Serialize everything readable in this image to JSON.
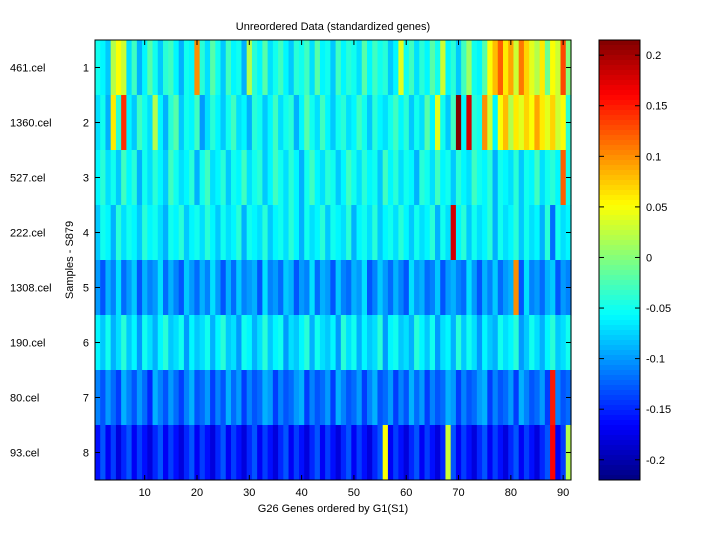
{
  "chart_data": {
    "type": "heatmap",
    "title": "Unreordered Data (standardized genes)",
    "xlabel": "G26 Genes ordered by G1(S1)",
    "ylabel": "Samples - S879",
    "x_ticks": [
      "10",
      "20",
      "30",
      "40",
      "50",
      "60",
      "70",
      "80",
      "90"
    ],
    "x_tick_values": [
      10,
      20,
      30,
      40,
      50,
      60,
      70,
      80,
      90
    ],
    "y_ticks": [
      "1",
      "2",
      "3",
      "4",
      "5",
      "6",
      "7",
      "8"
    ],
    "row_labels": [
      "461.cel",
      "1360.cel",
      "527.cel",
      "222.cel",
      "1308.cel",
      "190.cel",
      "80.cel",
      "93.cel"
    ],
    "n_genes": 91,
    "colormap": "jet",
    "clim": [
      -0.22,
      0.215
    ],
    "colorbar_ticks": [
      "0.2",
      "0.15",
      "0.1",
      "0.05",
      "0",
      "-0.05",
      "-0.1",
      "-0.15",
      "-0.2"
    ],
    "colorbar_tick_values": [
      0.2,
      0.15,
      0.1,
      0.05,
      0,
      -0.05,
      -0.1,
      -0.15,
      -0.2
    ],
    "values": [
      [
        -0.05,
        -0.06,
        -0.08,
        0.02,
        0.05,
        0.03,
        -0.07,
        -0.03,
        -0.09,
        -0.06,
        -0.02,
        -0.05,
        -0.08,
        -0.04,
        -0.03,
        -0.06,
        -0.09,
        -0.05,
        -0.06,
        0.1,
        -0.04,
        -0.07,
        -0.02,
        -0.05,
        -0.08,
        -0.03,
        -0.06,
        -0.05,
        -0.09,
        0.02,
        -0.04,
        -0.06,
        -0.02,
        -0.07,
        -0.05,
        -0.03,
        -0.06,
        -0.08,
        -0.04,
        -0.05,
        -0.03,
        -0.07,
        -0.02,
        -0.06,
        -0.05,
        -0.08,
        -0.03,
        -0.06,
        -0.04,
        -0.05,
        -0.07,
        -0.02,
        -0.06,
        -0.03,
        -0.05,
        -0.04,
        -0.08,
        -0.06,
        0.04,
        -0.05,
        -0.03,
        -0.07,
        -0.04,
        -0.06,
        -0.02,
        -0.05,
        0.03,
        -0.06,
        -0.04,
        -0.08,
        -0.03,
        0.01,
        -0.05,
        -0.06,
        -0.02,
        0.05,
        0.08,
        0.12,
        0.06,
        0.09,
        0.03,
        0.11,
        0.07,
        0.04,
        0.02,
        0.06,
        -0.01,
        0.05,
        0.03,
        0.13,
        0.0
      ],
      [
        -0.07,
        -0.05,
        -0.09,
        0.06,
        -0.04,
        0.14,
        -0.06,
        -0.08,
        -0.03,
        -0.05,
        -0.07,
        0.02,
        -0.06,
        -0.09,
        -0.04,
        -0.02,
        -0.08,
        -0.05,
        -0.06,
        -0.03,
        -0.1,
        -0.07,
        -0.04,
        -0.06,
        -0.08,
        -0.05,
        -0.03,
        -0.07,
        -0.06,
        -0.09,
        -0.04,
        -0.05,
        -0.08,
        -0.06,
        -0.03,
        -0.07,
        -0.05,
        -0.04,
        -0.09,
        -0.06,
        -0.02,
        -0.05,
        -0.07,
        -0.03,
        -0.06,
        -0.08,
        -0.05,
        -0.04,
        -0.07,
        -0.06,
        -0.03,
        -0.05,
        -0.08,
        -0.04,
        -0.06,
        -0.07,
        -0.05,
        -0.03,
        -0.06,
        -0.04,
        -0.08,
        -0.05,
        -0.07,
        -0.02,
        -0.06,
        0.04,
        -0.05,
        -0.08,
        -0.03,
        0.22,
        -0.06,
        0.18,
        -0.04,
        -0.05,
        0.1,
        0.03,
        -0.06,
        0.05,
        0.08,
        0.02,
        0.06,
        0.04,
        0.07,
        0.05,
        0.09,
        0.06,
        0.04,
        0.07,
        0.03,
        0.05,
        -0.04
      ],
      [
        -0.06,
        -0.04,
        -0.07,
        -0.05,
        -0.08,
        -0.03,
        -0.06,
        -0.04,
        -0.09,
        -0.05,
        -0.07,
        -0.04,
        -0.06,
        -0.08,
        -0.03,
        -0.05,
        -0.07,
        -0.06,
        -0.04,
        -0.09,
        -0.05,
        -0.03,
        -0.07,
        -0.06,
        -0.04,
        -0.08,
        -0.05,
        -0.06,
        -0.03,
        -0.07,
        -0.05,
        -0.04,
        -0.08,
        -0.06,
        -0.03,
        -0.05,
        -0.07,
        -0.04,
        -0.06,
        -0.09,
        -0.05,
        -0.03,
        -0.06,
        -0.07,
        -0.04,
        -0.05,
        -0.08,
        -0.06,
        -0.03,
        -0.05,
        -0.07,
        -0.04,
        -0.06,
        -0.05,
        -0.08,
        -0.03,
        -0.06,
        -0.04,
        -0.07,
        -0.05,
        -0.06,
        -0.09,
        -0.04,
        -0.05,
        -0.07,
        -0.03,
        -0.06,
        -0.05,
        -0.08,
        -0.04,
        -0.06,
        -0.07,
        -0.03,
        -0.05,
        -0.06,
        -0.04,
        -0.09,
        -0.05,
        -0.06,
        -0.07,
        -0.04,
        -0.08,
        -0.05,
        -0.06,
        -0.03,
        -0.07,
        -0.05,
        -0.04,
        -0.06,
        0.12,
        -0.05
      ],
      [
        -0.08,
        -0.05,
        -0.06,
        -0.09,
        -0.04,
        -0.07,
        -0.05,
        -0.06,
        -0.08,
        -0.04,
        -0.06,
        -0.05,
        -0.07,
        -0.09,
        -0.05,
        -0.06,
        -0.04,
        -0.08,
        -0.06,
        -0.05,
        -0.07,
        -0.04,
        -0.06,
        -0.08,
        -0.05,
        -0.07,
        -0.06,
        -0.04,
        -0.09,
        -0.05,
        -0.06,
        -0.07,
        -0.04,
        -0.08,
        -0.06,
        -0.05,
        -0.07,
        -0.04,
        -0.06,
        -0.09,
        -0.05,
        -0.07,
        -0.06,
        -0.04,
        -0.08,
        -0.05,
        -0.06,
        -0.07,
        -0.04,
        -0.09,
        -0.06,
        -0.05,
        -0.07,
        -0.04,
        -0.08,
        -0.06,
        -0.05,
        -0.07,
        -0.04,
        -0.06,
        -0.08,
        -0.05,
        -0.07,
        -0.06,
        -0.04,
        -0.09,
        -0.05,
        -0.07,
        0.18,
        -0.06,
        -0.04,
        -0.08,
        -0.05,
        -0.07,
        -0.06,
        -0.04,
        -0.09,
        -0.05,
        -0.07,
        -0.06,
        -0.04,
        -0.08,
        -0.05,
        -0.07,
        -0.06,
        -0.09,
        -0.04,
        -0.12,
        -0.05,
        -0.07,
        -0.06
      ],
      [
        -0.1,
        -0.13,
        -0.09,
        -0.11,
        -0.07,
        -0.12,
        -0.1,
        -0.08,
        -0.13,
        -0.09,
        -0.11,
        -0.1,
        -0.07,
        -0.12,
        -0.09,
        -0.11,
        -0.13,
        -0.08,
        -0.1,
        -0.12,
        -0.09,
        -0.11,
        -0.07,
        -0.1,
        -0.13,
        -0.09,
        -0.12,
        -0.08,
        -0.11,
        -0.1,
        -0.09,
        -0.13,
        -0.07,
        -0.11,
        -0.1,
        -0.12,
        -0.08,
        -0.09,
        -0.13,
        -0.1,
        -0.11,
        -0.07,
        -0.12,
        -0.09,
        -0.1,
        -0.13,
        -0.08,
        -0.11,
        -0.12,
        -0.09,
        -0.1,
        -0.07,
        -0.13,
        -0.11,
        -0.08,
        -0.1,
        -0.12,
        -0.09,
        -0.11,
        -0.13,
        -0.07,
        -0.1,
        -0.09,
        -0.12,
        -0.11,
        -0.08,
        -0.13,
        -0.1,
        -0.09,
        -0.11,
        -0.12,
        -0.07,
        -0.1,
        -0.13,
        -0.09,
        -0.11,
        -0.08,
        -0.12,
        -0.1,
        -0.09,
        0.1,
        -0.13,
        -0.07,
        -0.11,
        -0.1,
        -0.12,
        -0.09,
        -0.08,
        -0.13,
        -0.1,
        -0.11
      ],
      [
        -0.06,
        -0.08,
        -0.05,
        -0.09,
        -0.07,
        -0.04,
        -0.08,
        -0.06,
        -0.1,
        -0.05,
        -0.07,
        -0.09,
        -0.06,
        -0.04,
        -0.08,
        -0.07,
        -0.05,
        -0.1,
        -0.06,
        -0.08,
        -0.07,
        -0.05,
        -0.09,
        -0.06,
        -0.04,
        -0.08,
        -0.07,
        -0.1,
        -0.05,
        -0.06,
        -0.09,
        -0.07,
        -0.04,
        -0.08,
        -0.06,
        -0.05,
        -0.1,
        -0.07,
        -0.08,
        -0.06,
        -0.04,
        -0.09,
        -0.05,
        -0.07,
        -0.08,
        -0.06,
        -0.1,
        -0.04,
        -0.07,
        -0.05,
        -0.09,
        -0.06,
        -0.08,
        -0.07,
        -0.04,
        -0.1,
        -0.06,
        -0.05,
        -0.08,
        -0.07,
        -0.09,
        -0.04,
        -0.06,
        -0.08,
        -0.05,
        -0.1,
        -0.07,
        -0.06,
        -0.09,
        -0.04,
        -0.08,
        -0.05,
        -0.07,
        -0.1,
        -0.06,
        -0.08,
        -0.09,
        -0.05,
        -0.07,
        -0.06,
        -0.04,
        -0.1,
        -0.08,
        -0.05,
        -0.07,
        -0.09,
        -0.06,
        -0.04,
        -0.08,
        -0.07,
        -0.05
      ],
      [
        -0.11,
        -0.13,
        -0.1,
        -0.12,
        -0.14,
        -0.09,
        -0.11,
        -0.13,
        -0.1,
        -0.12,
        -0.15,
        -0.09,
        -0.11,
        -0.13,
        -0.1,
        -0.12,
        -0.14,
        -0.11,
        -0.09,
        -0.13,
        -0.12,
        -0.1,
        -0.14,
        -0.11,
        -0.13,
        -0.09,
        -0.12,
        -0.1,
        -0.14,
        -0.11,
        -0.13,
        -0.12,
        -0.09,
        -0.1,
        -0.14,
        -0.11,
        -0.13,
        -0.12,
        -0.1,
        -0.09,
        -0.14,
        -0.11,
        -0.13,
        -0.12,
        -0.1,
        -0.14,
        -0.09,
        -0.11,
        -0.13,
        -0.12,
        -0.1,
        -0.14,
        -0.11,
        -0.09,
        -0.13,
        -0.12,
        -0.1,
        -0.14,
        -0.11,
        -0.13,
        -0.09,
        -0.12,
        -0.1,
        -0.14,
        -0.11,
        -0.13,
        -0.12,
        -0.09,
        -0.1,
        -0.14,
        -0.11,
        -0.13,
        -0.12,
        -0.1,
        -0.09,
        -0.14,
        -0.11,
        -0.13,
        -0.12,
        -0.1,
        -0.14,
        -0.09,
        -0.11,
        -0.13,
        -0.12,
        -0.1,
        -0.14,
        0.15,
        -0.11,
        -0.13,
        -0.12
      ],
      [
        -0.16,
        -0.13,
        -0.17,
        -0.14,
        -0.18,
        -0.15,
        -0.13,
        -0.17,
        -0.14,
        -0.16,
        -0.18,
        -0.15,
        -0.13,
        -0.17,
        -0.14,
        -0.16,
        -0.18,
        -0.15,
        -0.13,
        -0.17,
        -0.14,
        -0.16,
        -0.18,
        -0.15,
        -0.13,
        -0.17,
        -0.14,
        -0.16,
        -0.18,
        -0.15,
        -0.13,
        -0.17,
        -0.14,
        -0.16,
        -0.18,
        -0.15,
        -0.13,
        -0.17,
        -0.14,
        -0.16,
        -0.18,
        -0.15,
        -0.13,
        -0.17,
        -0.14,
        -0.16,
        -0.18,
        -0.15,
        -0.13,
        -0.17,
        -0.14,
        -0.16,
        -0.18,
        -0.15,
        -0.13,
        0.05,
        -0.17,
        -0.14,
        -0.16,
        -0.18,
        -0.15,
        -0.13,
        -0.17,
        -0.14,
        -0.16,
        -0.18,
        -0.15,
        0.03,
        -0.13,
        -0.17,
        -0.14,
        -0.16,
        -0.18,
        -0.15,
        -0.13,
        -0.17,
        -0.14,
        -0.16,
        -0.18,
        -0.15,
        -0.13,
        -0.17,
        -0.14,
        -0.16,
        -0.18,
        -0.15,
        -0.13,
        0.16,
        -0.17,
        -0.14,
        0.02
      ]
    ]
  }
}
